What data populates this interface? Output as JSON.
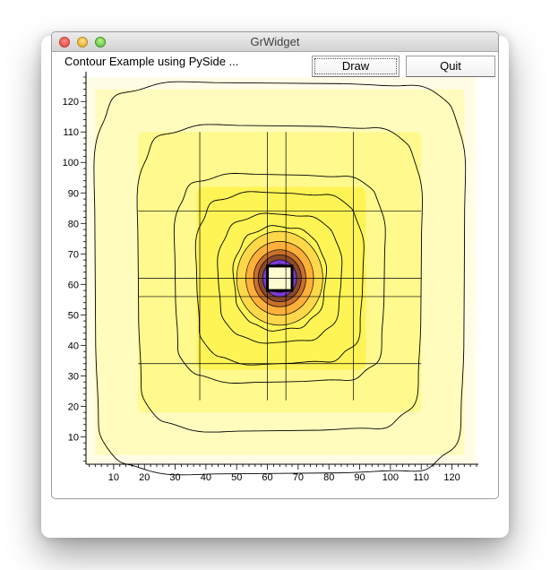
{
  "window": {
    "title": "GrWidget"
  },
  "toolbar": {
    "caption": "Contour Example using PySide ...",
    "draw_label": "Draw",
    "quit_label": "Quit"
  },
  "chart_data": {
    "type": "heatmap",
    "title": "",
    "xlabel": "",
    "ylabel": "",
    "xlim": [
      1,
      128
    ],
    "ylim": [
      1,
      128
    ],
    "xticks": [
      10,
      20,
      30,
      40,
      50,
      60,
      70,
      80,
      90,
      100,
      110,
      120
    ],
    "yticks": [
      10,
      20,
      30,
      40,
      50,
      60,
      70,
      80,
      90,
      100,
      110,
      120
    ],
    "grid": false,
    "colors": {
      "background": "#fffde6",
      "light_yellow": "#fffcbe",
      "yellow": "#fff98e",
      "deep_yellow": "#fff455",
      "orange": "#ffd24a",
      "brown": "#8a4a2a",
      "purple": "#7a3ad8",
      "blue": "#3a3af0",
      "contour": "#000000"
    }
  }
}
